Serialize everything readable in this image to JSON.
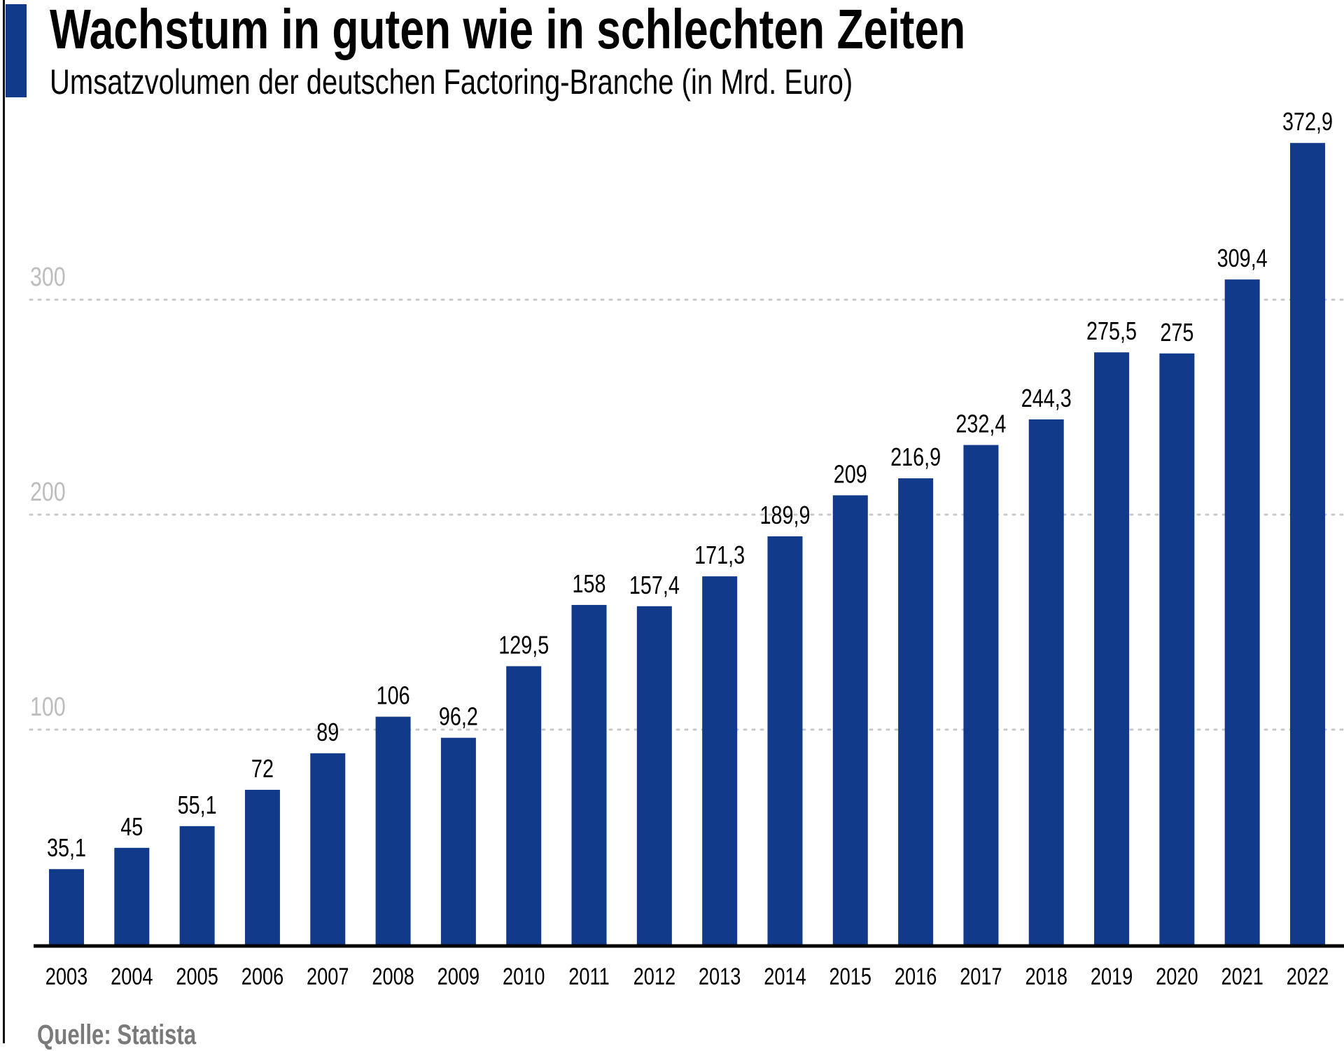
{
  "header": {
    "title": "Wachstum in guten wie in schlechten Zeiten",
    "subtitle": "Umsatzvolumen der deutschen Factoring-Branche (in Mrd. Euro)"
  },
  "footer": {
    "source": "Quelle: Statista"
  },
  "colors": {
    "bar": "#123a8a",
    "accent": "#123a8a",
    "grid": "#c8c8c8",
    "tick_label": "#bdbdbd",
    "source": "#7a7a7a"
  },
  "chart_data": {
    "type": "bar",
    "title": "Wachstum in guten wie in schlechten Zeiten",
    "subtitle": "Umsatzvolumen der deutschen Factoring-Branche (in Mrd. Euro)",
    "categories": [
      "2003",
      "2004",
      "2005",
      "2006",
      "2007",
      "2008",
      "2009",
      "2010",
      "2011",
      "2012",
      "2013",
      "2014",
      "2015",
      "2016",
      "2017",
      "2018",
      "2019",
      "2020",
      "2021",
      "2022"
    ],
    "values": [
      35.1,
      45,
      55.1,
      72,
      89,
      106,
      96.2,
      129.5,
      158,
      157.4,
      171.3,
      189.9,
      209,
      216.9,
      232.4,
      244.3,
      275.5,
      275,
      309.4,
      372.9
    ],
    "value_labels": [
      "35,1",
      "45",
      "55,1",
      "72",
      "89",
      "106",
      "96,2",
      "129,5",
      "158",
      "157,4",
      "171,3",
      "189,9",
      "209",
      "216,9",
      "232,4",
      "244,3",
      "275,5",
      "275",
      "309,4",
      "372,9"
    ],
    "yticks": [
      100,
      200,
      300
    ],
    "ytick_labels": [
      "100",
      "200",
      "300"
    ],
    "ylim": [
      0,
      380
    ],
    "grid": "horizontal dotted",
    "xlabel": "",
    "ylabel": "",
    "source": "Quelle: Statista"
  }
}
